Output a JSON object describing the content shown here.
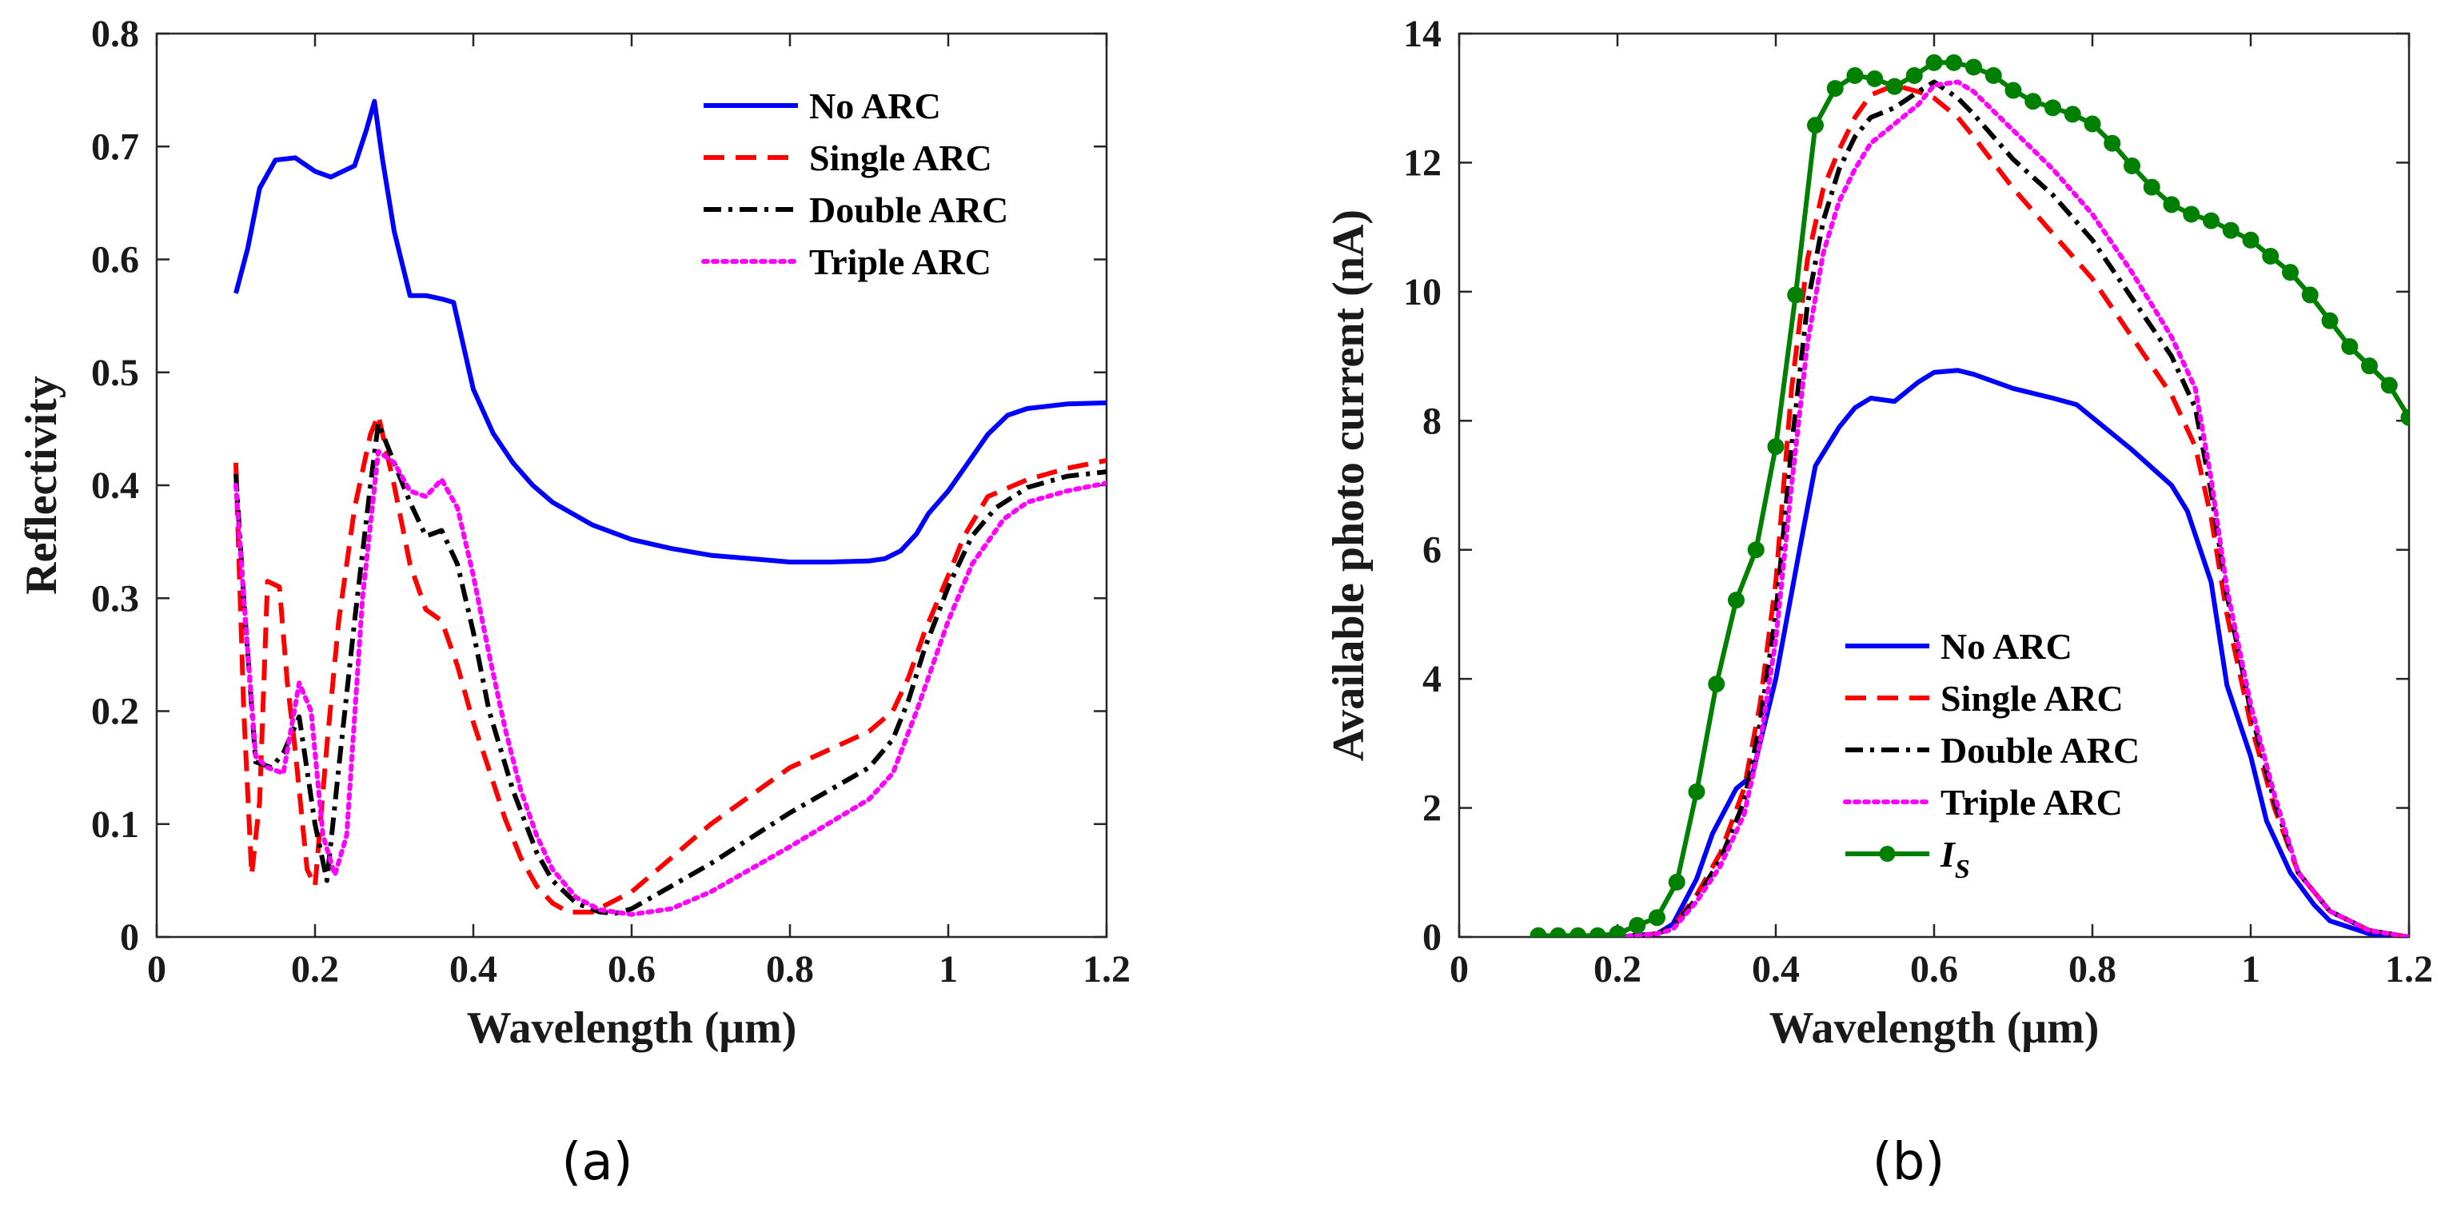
{
  "chart_data": [
    {
      "panel_label": "(a)",
      "type": "line",
      "title": "",
      "xlabel": "Wavelength (μm)",
      "ylabel": "Reflectivity",
      "xlim": [
        0,
        1.2
      ],
      "ylim": [
        0,
        0.8
      ],
      "xticks": [
        0,
        0.2,
        0.4,
        0.6,
        0.8,
        1.0,
        1.2
      ],
      "xtick_labels": [
        "0",
        "0.2",
        "0.4",
        "0.6",
        "0.8",
        "1",
        "1.2"
      ],
      "yticks": [
        0,
        0.1,
        0.2,
        0.3,
        0.4,
        0.5,
        0.6,
        0.7,
        0.8
      ],
      "ytick_labels": [
        "0",
        "0.1",
        "0.2",
        "0.3",
        "0.4",
        "0.5",
        "0.6",
        "0.7",
        "0.8"
      ],
      "grid": false,
      "legend_position": "top-right",
      "series": [
        {
          "name": "No ARC",
          "color": "#0000ff",
          "dash": "solid",
          "marker": "none",
          "x": [
            0.1,
            0.115,
            0.13,
            0.15,
            0.175,
            0.2,
            0.22,
            0.25,
            0.265,
            0.275,
            0.285,
            0.3,
            0.32,
            0.34,
            0.36,
            0.375,
            0.4,
            0.425,
            0.45,
            0.475,
            0.5,
            0.55,
            0.6,
            0.65,
            0.7,
            0.75,
            0.8,
            0.85,
            0.9,
            0.92,
            0.94,
            0.96,
            0.975,
            1.0,
            1.025,
            1.05,
            1.075,
            1.1,
            1.15,
            1.2
          ],
          "y": [
            0.57,
            0.61,
            0.663,
            0.688,
            0.69,
            0.678,
            0.673,
            0.683,
            0.715,
            0.74,
            0.69,
            0.625,
            0.568,
            0.568,
            0.565,
            0.562,
            0.485,
            0.446,
            0.42,
            0.4,
            0.385,
            0.365,
            0.352,
            0.344,
            0.338,
            0.335,
            0.332,
            0.332,
            0.333,
            0.335,
            0.342,
            0.357,
            0.375,
            0.395,
            0.42,
            0.445,
            0.462,
            0.468,
            0.472,
            0.473
          ]
        },
        {
          "name": "Single ARC",
          "color": "#ff0000",
          "dash": "dashed",
          "marker": "none",
          "x": [
            0.1,
            0.11,
            0.12,
            0.13,
            0.14,
            0.155,
            0.165,
            0.175,
            0.19,
            0.2,
            0.215,
            0.23,
            0.25,
            0.27,
            0.28,
            0.3,
            0.32,
            0.34,
            0.36,
            0.38,
            0.4,
            0.42,
            0.44,
            0.46,
            0.48,
            0.5,
            0.52,
            0.55,
            0.6,
            0.7,
            0.8,
            0.9,
            0.93,
            0.95,
            0.97,
            1.0,
            1.02,
            1.05,
            1.1,
            1.15,
            1.2
          ],
          "y": [
            0.42,
            0.2,
            0.055,
            0.12,
            0.315,
            0.31,
            0.225,
            0.165,
            0.06,
            0.045,
            0.17,
            0.28,
            0.38,
            0.445,
            0.462,
            0.4,
            0.33,
            0.29,
            0.28,
            0.24,
            0.19,
            0.148,
            0.105,
            0.07,
            0.045,
            0.03,
            0.022,
            0.022,
            0.04,
            0.1,
            0.15,
            0.182,
            0.2,
            0.23,
            0.27,
            0.32,
            0.355,
            0.39,
            0.405,
            0.415,
            0.422
          ]
        },
        {
          "name": "Double ARC",
          "color": "#000000",
          "dash": "dashdot",
          "marker": "none",
          "x": [
            0.1,
            0.11,
            0.125,
            0.145,
            0.16,
            0.18,
            0.2,
            0.215,
            0.23,
            0.25,
            0.27,
            0.28,
            0.3,
            0.32,
            0.34,
            0.36,
            0.38,
            0.4,
            0.42,
            0.45,
            0.48,
            0.5,
            0.53,
            0.56,
            0.58,
            0.6,
            0.7,
            0.8,
            0.9,
            0.93,
            0.95,
            0.97,
            1.0,
            1.03,
            1.06,
            1.1,
            1.15,
            1.2
          ],
          "y": [
            0.41,
            0.3,
            0.155,
            0.15,
            0.163,
            0.195,
            0.1,
            0.05,
            0.15,
            0.28,
            0.4,
            0.455,
            0.42,
            0.385,
            0.355,
            0.36,
            0.33,
            0.27,
            0.2,
            0.13,
            0.075,
            0.05,
            0.03,
            0.022,
            0.021,
            0.025,
            0.065,
            0.11,
            0.15,
            0.175,
            0.21,
            0.255,
            0.31,
            0.355,
            0.38,
            0.398,
            0.408,
            0.412
          ]
        },
        {
          "name": "Triple ARC",
          "color": "#ff00ff",
          "dash": "dotted",
          "marker": "none",
          "x": [
            0.1,
            0.11,
            0.125,
            0.14,
            0.16,
            0.18,
            0.195,
            0.21,
            0.225,
            0.24,
            0.26,
            0.28,
            0.3,
            0.32,
            0.34,
            0.36,
            0.38,
            0.4,
            0.42,
            0.44,
            0.46,
            0.48,
            0.5,
            0.53,
            0.56,
            0.6,
            0.65,
            0.7,
            0.8,
            0.9,
            0.93,
            0.96,
            1.0,
            1.03,
            1.07,
            1.1,
            1.15,
            1.2
          ],
          "y": [
            0.4,
            0.3,
            0.16,
            0.15,
            0.145,
            0.225,
            0.2,
            0.09,
            0.055,
            0.09,
            0.3,
            0.43,
            0.42,
            0.395,
            0.39,
            0.405,
            0.38,
            0.32,
            0.25,
            0.185,
            0.13,
            0.09,
            0.06,
            0.035,
            0.024,
            0.02,
            0.025,
            0.04,
            0.08,
            0.122,
            0.145,
            0.2,
            0.28,
            0.33,
            0.37,
            0.385,
            0.395,
            0.402
          ]
        }
      ]
    },
    {
      "panel_label": "(b)",
      "type": "line",
      "title": "",
      "xlabel": "Wavelength (μm)",
      "ylabel": "Available photo current (nA)",
      "xlim": [
        0,
        1.2
      ],
      "ylim": [
        0,
        14
      ],
      "xticks": [
        0,
        0.2,
        0.4,
        0.6,
        0.8,
        1.0,
        1.2
      ],
      "xtick_labels": [
        "0",
        "0.2",
        "0.4",
        "0.6",
        "0.8",
        "1",
        "1.2"
      ],
      "yticks": [
        0,
        2,
        4,
        6,
        8,
        10,
        12,
        14
      ],
      "ytick_labels": [
        "0",
        "2",
        "4",
        "6",
        "8",
        "10",
        "12",
        "14"
      ],
      "grid": false,
      "legend_position": "bottom-center",
      "series": [
        {
          "name": "No ARC",
          "color": "#0000ff",
          "dash": "solid",
          "marker": "none",
          "x": [
            0.2,
            0.25,
            0.27,
            0.3,
            0.32,
            0.35,
            0.37,
            0.4,
            0.43,
            0.45,
            0.48,
            0.5,
            0.52,
            0.55,
            0.58,
            0.6,
            0.63,
            0.65,
            0.7,
            0.75,
            0.78,
            0.8,
            0.85,
            0.9,
            0.92,
            0.95,
            0.97,
            1.0,
            1.02,
            1.05,
            1.08,
            1.1,
            1.15,
            1.2
          ],
          "y": [
            0,
            0.05,
            0.2,
            0.9,
            1.6,
            2.3,
            2.5,
            4.0,
            6.0,
            7.3,
            7.9,
            8.2,
            8.35,
            8.3,
            8.6,
            8.75,
            8.78,
            8.72,
            8.5,
            8.35,
            8.25,
            8.05,
            7.55,
            7.0,
            6.6,
            5.5,
            3.9,
            2.8,
            1.8,
            1.0,
            0.5,
            0.25,
            0.05,
            0
          ]
        },
        {
          "name": "Single ARC",
          "color": "#ff0000",
          "dash": "dashed",
          "marker": "none",
          "x": [
            0.2,
            0.25,
            0.27,
            0.3,
            0.33,
            0.36,
            0.38,
            0.4,
            0.42,
            0.44,
            0.46,
            0.48,
            0.5,
            0.52,
            0.55,
            0.58,
            0.6,
            0.63,
            0.65,
            0.7,
            0.75,
            0.8,
            0.85,
            0.9,
            0.93,
            0.95,
            0.97,
            1.0,
            1.03,
            1.06,
            1.1,
            1.15,
            1.2
          ],
          "y": [
            0,
            0.05,
            0.15,
            0.65,
            1.3,
            2.3,
            3.6,
            5.5,
            8.5,
            10.5,
            11.6,
            12.2,
            12.7,
            13.05,
            13.2,
            13.1,
            13.0,
            12.7,
            12.4,
            11.6,
            10.9,
            10.2,
            9.3,
            8.4,
            7.6,
            6.5,
            5.0,
            3.3,
            2.0,
            1.0,
            0.4,
            0.1,
            0
          ]
        },
        {
          "name": "Double ARC",
          "color": "#000000",
          "dash": "dashdot",
          "marker": "none",
          "x": [
            0.2,
            0.25,
            0.27,
            0.3,
            0.33,
            0.36,
            0.38,
            0.4,
            0.42,
            0.44,
            0.46,
            0.48,
            0.5,
            0.52,
            0.55,
            0.58,
            0.6,
            0.63,
            0.65,
            0.7,
            0.75,
            0.8,
            0.85,
            0.9,
            0.93,
            0.95,
            0.97,
            1.0,
            1.03,
            1.06,
            1.1,
            1.15,
            1.2
          ],
          "y": [
            0,
            0.05,
            0.15,
            0.6,
            1.2,
            2.1,
            3.3,
            5.0,
            7.6,
            9.8,
            11.1,
            11.9,
            12.4,
            12.7,
            12.85,
            13.1,
            13.25,
            13.0,
            12.75,
            12.05,
            11.5,
            10.8,
            9.9,
            9.0,
            8.2,
            6.9,
            5.3,
            3.5,
            2.1,
            1.0,
            0.4,
            0.1,
            0
          ]
        },
        {
          "name": "Triple ARC",
          "color": "#ff00ff",
          "dash": "dotted",
          "marker": "none",
          "x": [
            0.2,
            0.25,
            0.27,
            0.3,
            0.33,
            0.36,
            0.38,
            0.4,
            0.42,
            0.44,
            0.46,
            0.48,
            0.5,
            0.52,
            0.55,
            0.58,
            0.6,
            0.63,
            0.65,
            0.7,
            0.75,
            0.8,
            0.85,
            0.9,
            0.93,
            0.95,
            0.97,
            1.0,
            1.03,
            1.06,
            1.1,
            1.15,
            1.2
          ],
          "y": [
            0,
            0.05,
            0.12,
            0.55,
            1.1,
            1.9,
            3.0,
            4.6,
            7.0,
            9.2,
            10.6,
            11.4,
            11.9,
            12.3,
            12.6,
            12.9,
            13.2,
            13.25,
            13.1,
            12.5,
            11.9,
            11.2,
            10.3,
            9.3,
            8.5,
            7.1,
            5.4,
            3.6,
            2.2,
            1.0,
            0.4,
            0.1,
            0
          ]
        },
        {
          "name": "I_S",
          "legend_main": "I",
          "legend_sub": "S",
          "color": "#008000",
          "dash": "solid",
          "marker": "circle",
          "x": [
            0.1,
            0.125,
            0.15,
            0.175,
            0.2,
            0.225,
            0.25,
            0.275,
            0.3,
            0.325,
            0.35,
            0.375,
            0.4,
            0.425,
            0.45,
            0.475,
            0.5,
            0.525,
            0.55,
            0.575,
            0.6,
            0.625,
            0.65,
            0.675,
            0.7,
            0.725,
            0.75,
            0.775,
            0.8,
            0.825,
            0.85,
            0.875,
            0.9,
            0.925,
            0.95,
            0.975,
            1.0,
            1.025,
            1.05,
            1.075,
            1.1,
            1.125,
            1.15,
            1.175,
            1.2
          ],
          "y": [
            0.02,
            0.02,
            0.02,
            0.02,
            0.05,
            0.18,
            0.3,
            0.85,
            2.25,
            3.92,
            5.22,
            6.0,
            7.6,
            9.95,
            12.58,
            13.15,
            13.35,
            13.3,
            13.18,
            13.35,
            13.55,
            13.55,
            13.48,
            13.35,
            13.12,
            12.95,
            12.85,
            12.75,
            12.6,
            12.3,
            11.95,
            11.62,
            11.35,
            11.2,
            11.1,
            10.95,
            10.8,
            10.55,
            10.3,
            9.95,
            9.55,
            9.15,
            8.85,
            8.55,
            8.05
          ]
        }
      ]
    }
  ]
}
